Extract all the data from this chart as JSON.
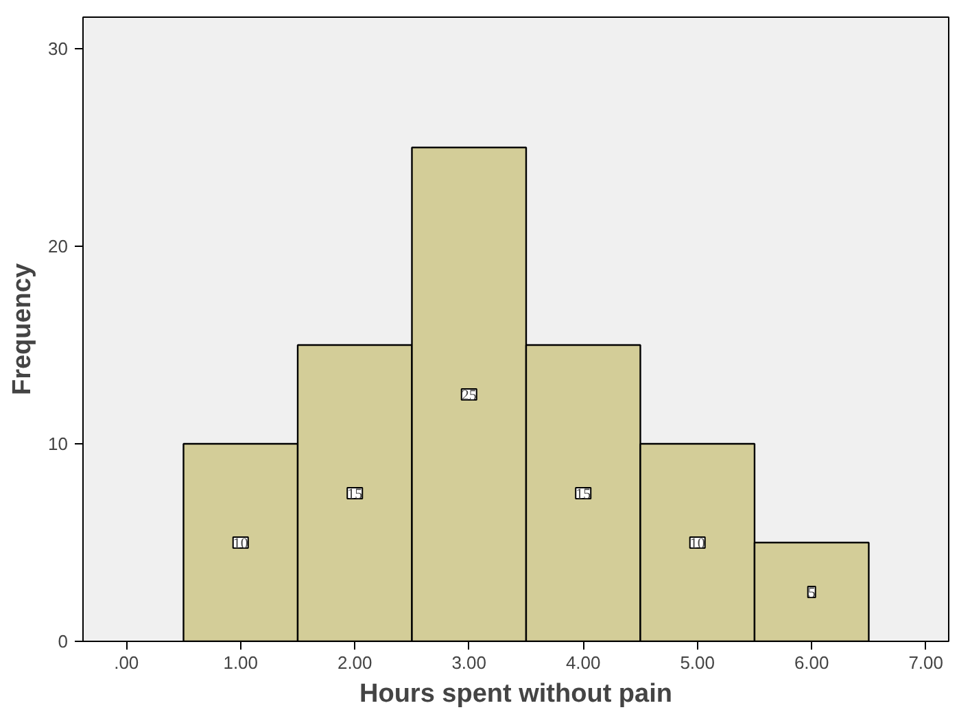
{
  "chart_data": {
    "type": "histogram",
    "xlabel": "Hours spent without pain",
    "ylabel": "Frequency",
    "bins": [
      0.5,
      1.5,
      2.5,
      3.5,
      4.5,
      5.5,
      6.5
    ],
    "values": [
      10,
      15,
      25,
      15,
      10,
      5
    ],
    "color": "#d3cd98",
    "data_labels": true,
    "xlim": [
      -0.38,
      7.2
    ],
    "ylim": [
      0,
      31.6
    ],
    "xticks": [
      {
        "value": 0,
        "label": ".00"
      },
      {
        "value": 1,
        "label": "1.00"
      },
      {
        "value": 2,
        "label": "2.00"
      },
      {
        "value": 3,
        "label": "3.00"
      },
      {
        "value": 4,
        "label": "4.00"
      },
      {
        "value": 5,
        "label": "5.00"
      },
      {
        "value": 6,
        "label": "6.00"
      },
      {
        "value": 7,
        "label": "7.00"
      }
    ],
    "yticks": [
      0,
      10,
      20,
      30
    ],
    "grid": false
  }
}
